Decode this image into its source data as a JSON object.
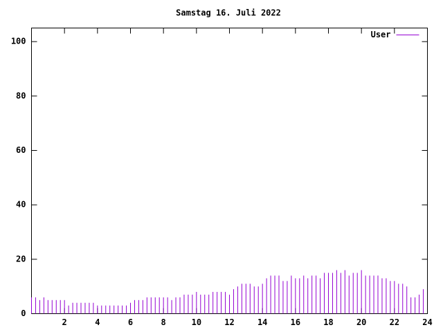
{
  "chart_data": {
    "type": "impulse",
    "title": "Samstag 16. Juli 2022",
    "x": [
      0,
      0.25,
      0.5,
      0.75,
      1,
      1.25,
      1.5,
      1.75,
      2,
      2.25,
      2.5,
      2.75,
      3,
      3.25,
      3.5,
      3.75,
      4,
      4.25,
      4.5,
      4.75,
      5,
      5.25,
      5.5,
      5.75,
      6,
      6.25,
      6.5,
      6.75,
      7,
      7.25,
      7.5,
      7.75,
      8,
      8.25,
      8.5,
      8.75,
      9,
      9.25,
      9.5,
      9.75,
      10,
      10.25,
      10.5,
      10.75,
      11,
      11.25,
      11.5,
      11.75,
      12,
      12.25,
      12.5,
      12.75,
      13,
      13.25,
      13.5,
      13.75,
      14,
      14.25,
      14.5,
      14.75,
      15,
      15.25,
      15.5,
      15.75,
      16,
      16.25,
      16.5,
      16.75,
      17,
      17.25,
      17.5,
      17.75,
      18,
      18.25,
      18.5,
      18.75,
      19,
      19.25,
      19.5,
      19.75,
      20,
      20.25,
      20.5,
      20.75,
      21,
      21.25,
      21.5,
      21.75,
      22,
      22.25,
      22.5,
      22.75,
      23,
      23.25,
      23.5,
      23.75
    ],
    "series": [
      {
        "name": "User",
        "color": "#9400d3",
        "values": [
          6,
          6,
          5,
          6,
          5,
          5,
          5,
          5,
          5,
          3,
          4,
          4,
          4,
          4,
          4,
          4,
          3,
          3,
          3,
          3,
          3,
          3,
          3,
          3,
          4,
          5,
          5,
          5,
          6,
          6,
          6,
          6,
          6,
          6,
          5,
          6,
          6,
          7,
          7,
          7,
          8,
          7,
          7,
          7,
          8,
          8,
          8,
          8,
          7,
          9,
          10,
          11,
          11,
          11,
          10,
          10,
          11,
          13,
          14,
          14,
          14,
          12,
          12,
          14,
          13,
          13,
          14,
          13,
          14,
          14,
          13,
          15,
          15,
          15,
          16,
          15,
          16,
          14,
          15,
          15,
          16,
          14,
          14,
          14,
          14,
          13,
          13,
          12,
          12,
          11,
          11,
          10,
          6,
          6,
          7,
          9
        ]
      }
    ],
    "xlim": [
      0,
      24
    ],
    "xticks": [
      2,
      4,
      6,
      8,
      10,
      12,
      14,
      16,
      18,
      20,
      22,
      24
    ],
    "ylim": [
      0,
      105
    ],
    "yticks": [
      0,
      20,
      40,
      60,
      80,
      100
    ],
    "legend_position": "top-right",
    "grid": false
  }
}
